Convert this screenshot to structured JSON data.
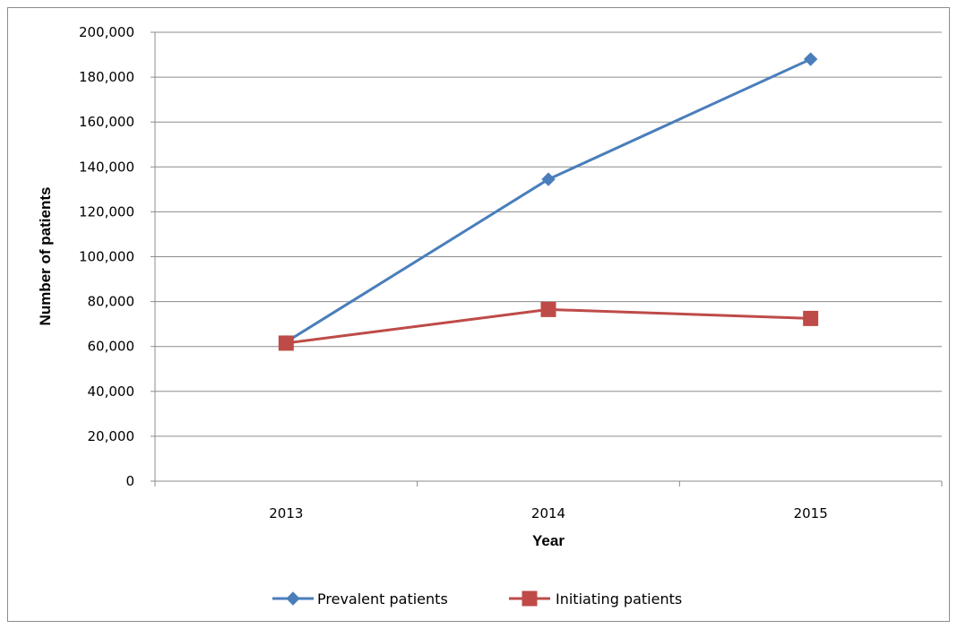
{
  "chart_data": {
    "type": "line",
    "title": "",
    "xlabel": "Year",
    "ylabel": "Number of patients",
    "categories": [
      "2013",
      "2014",
      "2015"
    ],
    "ylim": [
      0,
      200000
    ],
    "yticks": [
      0,
      20000,
      40000,
      60000,
      80000,
      100000,
      120000,
      140000,
      160000,
      180000,
      200000
    ],
    "ytick_labels": [
      "0",
      "20,000",
      "40,000",
      "60,000",
      "80,000",
      "100,000",
      "120,000",
      "140,000",
      "160,000",
      "180,000",
      "200,000"
    ],
    "grid": "horizontal",
    "legend_position": "bottom",
    "series": [
      {
        "name": "Prevalent patients",
        "values": [
          62000,
          134500,
          188000
        ],
        "color": "#4a7ebb",
        "marker": "diamond"
      },
      {
        "name": "Initiating patients",
        "values": [
          61500,
          76500,
          72500
        ],
        "color": "#be4b48",
        "marker": "square"
      }
    ]
  }
}
